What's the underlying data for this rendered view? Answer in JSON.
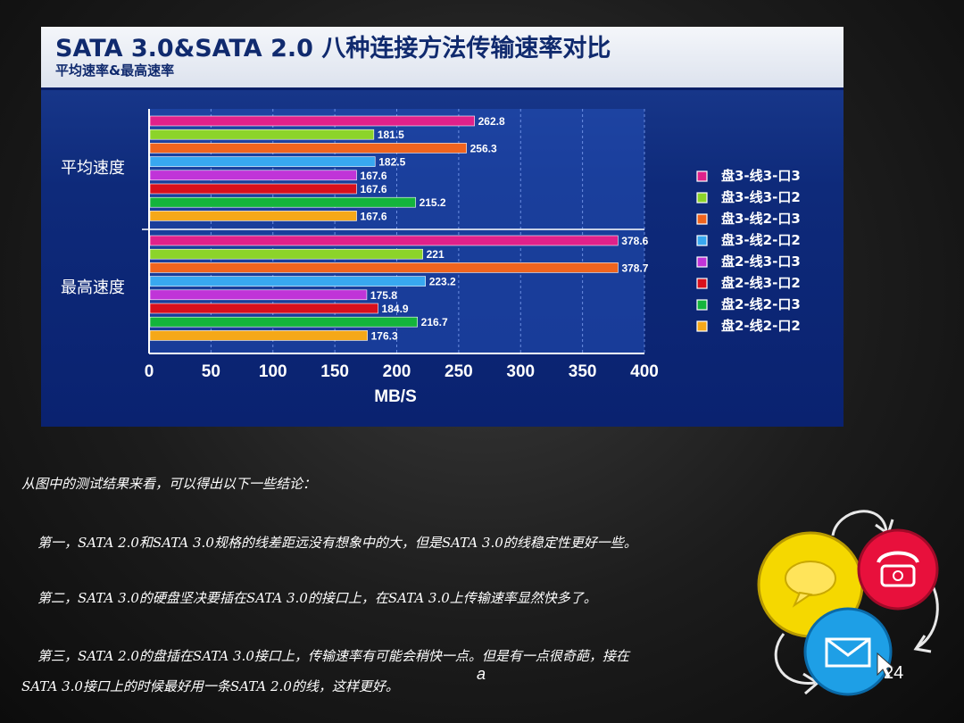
{
  "slide": {
    "footer_mark": "a",
    "page_number": "24",
    "notes": [
      "从图中的测试结果来看，可以得出以下一些结论：",
      "第一，SATA 2.0和SATA 3.0规格的线差距远没有想象中的大，但是SATA 3.0的线稳定性更好一些。",
      "第二，SATA 3.0的硬盘坚决要插在SATA 3.0的接口上，在SATA 3.0上传输速率显然快多了。",
      "第三，SATA 2.0的盘插在SATA 3.0接口上，传输速率有可能会稍快一点。但是有一点很奇葩，接在",
      "SATA 3.0接口上的时候最好用一条SATA 2.0的线，这样更好。"
    ],
    "contact_icons": [
      "chat-bubble-icon",
      "telephone-icon",
      "envelope-icon",
      "cycle-arrows-icon"
    ]
  },
  "chart_data": {
    "type": "bar",
    "orientation": "horizontal",
    "title": "SATA 3.0&SATA 2.0 八种连接方法传输速率对比",
    "subtitle": "平均速率&最高速率",
    "xlabel": "MB/S",
    "xlim": [
      0,
      400
    ],
    "xticks": [
      "0",
      "50",
      "100",
      "150",
      "200",
      "250",
      "300",
      "350",
      "400"
    ],
    "grid": true,
    "legend_position": "right",
    "categories": [
      "平均速度",
      "最高速度"
    ],
    "series": [
      {
        "name": "盘3-线3-口3",
        "color": "#e0218a",
        "values": [
          262.8,
          378.6
        ],
        "labels": [
          "262.8",
          "378.6"
        ]
      },
      {
        "name": "盘3-线3-口2",
        "color": "#8cd42a",
        "values": [
          181.5,
          221
        ],
        "labels": [
          "181.5",
          "221"
        ]
      },
      {
        "name": "盘3-线2-口3",
        "color": "#f0641e",
        "values": [
          256.3,
          378.7
        ],
        "labels": [
          "256.3",
          "378.7"
        ]
      },
      {
        "name": "盘3-线2-口2",
        "color": "#38a8f0",
        "values": [
          182.5,
          223.2
        ],
        "labels": [
          "182.5",
          "223.2"
        ]
      },
      {
        "name": "盘2-线3-口3",
        "color": "#c034d8",
        "values": [
          167.6,
          175.8
        ],
        "labels": [
          "167.6",
          "175.8"
        ]
      },
      {
        "name": "盘2-线3-口2",
        "color": "#d8101c",
        "values": [
          167.6,
          184.9
        ],
        "labels": [
          "167.6",
          "184.9"
        ]
      },
      {
        "name": "盘2-线2-口3",
        "color": "#14b43c",
        "values": [
          215.2,
          216.7
        ],
        "labels": [
          "215.2",
          "216.7"
        ]
      },
      {
        "name": "盘2-线2-口2",
        "color": "#f5a818",
        "values": [
          167.6,
          176.3
        ],
        "labels": [
          "167.6",
          "176.3"
        ]
      }
    ]
  }
}
